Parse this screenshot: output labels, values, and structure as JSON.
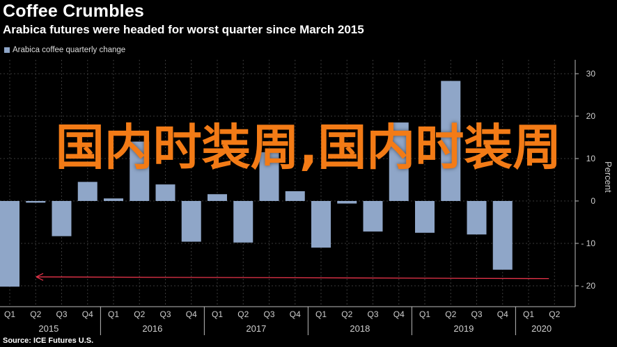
{
  "header": {
    "title": "Coffee Crumbles",
    "subtitle": "Arabica futures were headed for worst quarter since March 2015"
  },
  "source": "Source: ICE Futures U.S.",
  "watermark": "国内时装周,国内时装周",
  "colors": {
    "bar": "#8fa6c8",
    "arrow": "#e8344a",
    "grid": "#3a3a3a",
    "axis": "#bbbbbb",
    "watermark": "#f37b16"
  },
  "chart_data": {
    "type": "bar",
    "ylabel": "Percent",
    "ylim": [
      -25,
      32
    ],
    "yticks": [
      30,
      20,
      10,
      0,
      -10,
      -20
    ],
    "legend": {
      "label": "Arabica coffee quarterly change",
      "position": "top-left"
    },
    "categories": [
      "Q1",
      "Q2",
      "Q3",
      "Q4",
      "Q1",
      "Q2",
      "Q3",
      "Q4",
      "Q1",
      "Q2",
      "Q3",
      "Q4",
      "Q1",
      "Q2",
      "Q3",
      "Q4",
      "Q1",
      "Q2",
      "Q3",
      "Q4",
      "Q1",
      "Q2"
    ],
    "years": [
      {
        "label": "2015",
        "start": 0,
        "end": 3
      },
      {
        "label": "2016",
        "start": 4,
        "end": 7
      },
      {
        "label": "2017",
        "start": 8,
        "end": 11
      },
      {
        "label": "2018",
        "start": 12,
        "end": 15
      },
      {
        "label": "2019",
        "start": 16,
        "end": 19
      },
      {
        "label": "2020",
        "start": 20,
        "end": 21
      }
    ],
    "series": [
      {
        "values": [
          -20.2,
          -0.4,
          -8.3,
          4.5,
          0.6,
          14.0,
          3.9,
          -9.6,
          1.6,
          -9.8,
          11.5,
          2.3,
          -11.0,
          -0.6,
          -7.2,
          18.5,
          -7.5,
          28.3,
          -7.9,
          -16.2,
          null,
          null
        ]
      }
    ],
    "annotation": {
      "type": "arrow",
      "from_category": 21,
      "to_category": 0,
      "y": -18.3
    }
  }
}
